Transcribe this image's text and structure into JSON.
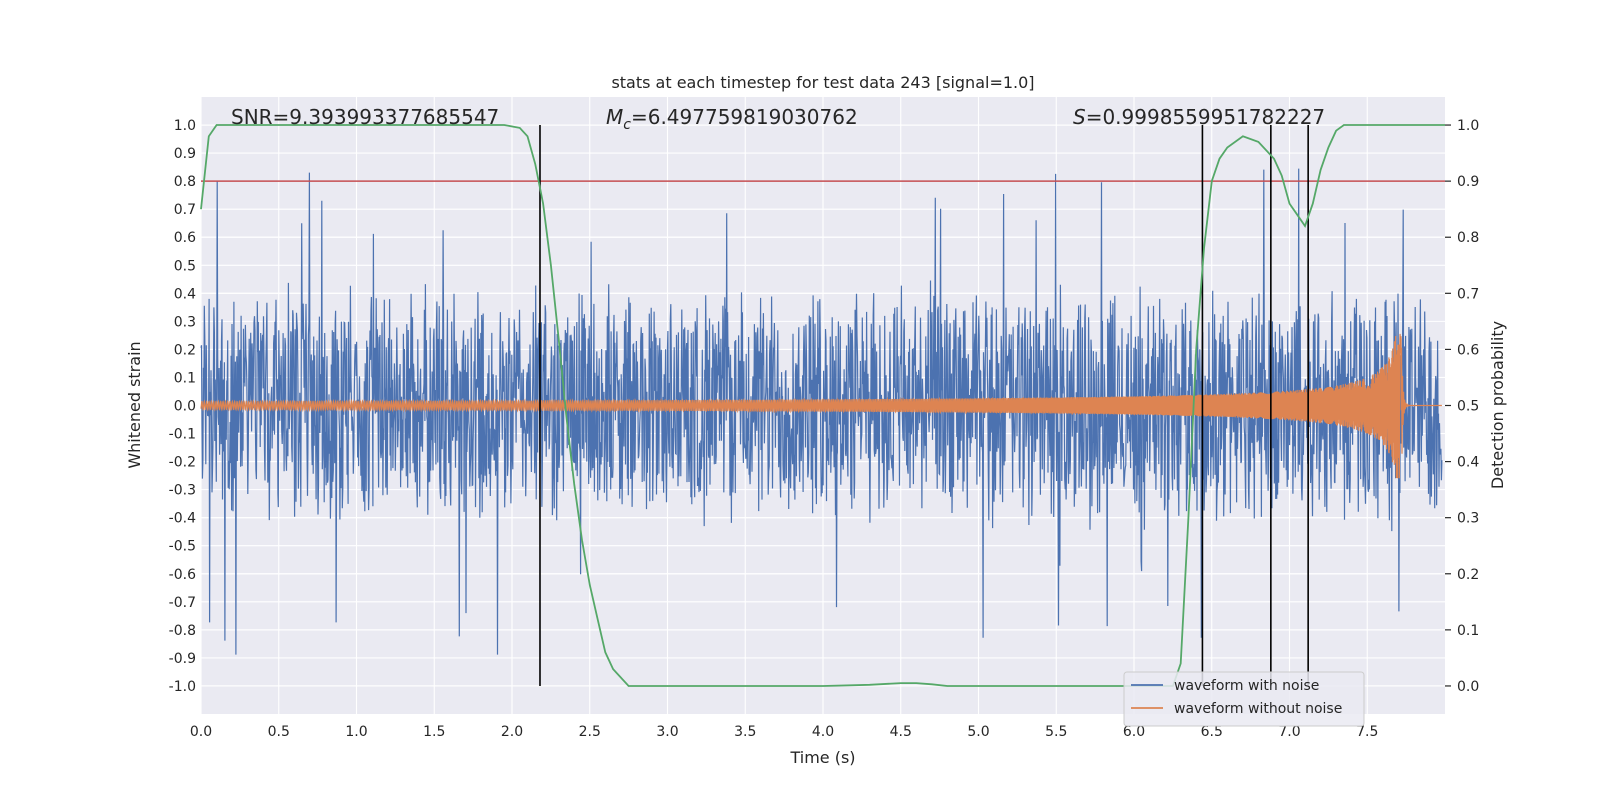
{
  "chart_data": {
    "type": "line",
    "title": "stats at each timestep for test data 243 [signal=1.0]",
    "xlabel": "Time (s)",
    "ylabel_left": "Whitened strain",
    "ylabel_right": "Detection probability",
    "xlim": [
      0.0,
      8.0
    ],
    "ylim_left": [
      -1.1,
      1.1
    ],
    "ylim_right": [
      -0.05,
      1.05
    ],
    "x_ticks": [
      "0.0",
      "0.5",
      "1.0",
      "1.5",
      "2.0",
      "2.5",
      "3.0",
      "3.5",
      "4.0",
      "4.5",
      "5.0",
      "5.5",
      "6.0",
      "6.5",
      "7.0",
      "7.5"
    ],
    "y_ticks_left": [
      "1.0",
      "0.9",
      "0.8",
      "0.7",
      "0.6",
      "0.5",
      "0.4",
      "0.3",
      "0.2",
      "0.1",
      "0.0",
      "-0.1",
      "-0.2",
      "-0.3",
      "-0.4",
      "-0.5",
      "-0.6",
      "-0.7",
      "-0.8",
      "-0.9",
      "-1.0"
    ],
    "y_ticks_right": [
      "1.0",
      "0.9",
      "0.8",
      "0.7",
      "0.6",
      "0.5",
      "0.4",
      "0.3",
      "0.2",
      "0.1",
      "0.0"
    ],
    "annotations": {
      "snr": "SNR=9.393993377685547",
      "mc_symbol": "M",
      "mc_sub": "c",
      "mc_value": "=6.497759819030762",
      "s_symbol": "S",
      "s_value": "=0.9998559951782227"
    },
    "series": [
      {
        "name": "waveform with noise",
        "color": "#4c72b0",
        "kind": "noise",
        "envelope_p95": 0.45,
        "peak": 0.89
      },
      {
        "name": "waveform without noise",
        "color": "#dd8452",
        "kind": "chirp",
        "merger_time": 7.72,
        "peak_amplitude": 0.26
      },
      {
        "name": "detection probability",
        "color": "#55a868",
        "axis": "right",
        "x": [
          0.0,
          0.05,
          0.1,
          0.2,
          1.5,
          1.95,
          2.05,
          2.1,
          2.15,
          2.2,
          2.25,
          2.3,
          2.35,
          2.4,
          2.45,
          2.5,
          2.55,
          2.6,
          2.65,
          2.75,
          3.0,
          4.0,
          4.3,
          4.5,
          4.6,
          4.7,
          4.8,
          5.0,
          6.0,
          6.25,
          6.3,
          6.35,
          6.4,
          6.45,
          6.5,
          6.55,
          6.6,
          6.7,
          6.8,
          6.9,
          6.95,
          7.0,
          7.05,
          7.1,
          7.15,
          7.2,
          7.25,
          7.3,
          7.35,
          7.4,
          8.0
        ],
        "y": [
          0.85,
          0.98,
          1.0,
          1.0,
          1.0,
          1.0,
          0.995,
          0.98,
          0.93,
          0.86,
          0.75,
          0.62,
          0.48,
          0.36,
          0.26,
          0.18,
          0.12,
          0.06,
          0.03,
          0.0,
          0.0,
          0.0,
          0.002,
          0.005,
          0.005,
          0.003,
          0.0,
          0.0,
          0.0,
          0.0,
          0.04,
          0.3,
          0.6,
          0.78,
          0.9,
          0.94,
          0.96,
          0.98,
          0.97,
          0.94,
          0.91,
          0.86,
          0.84,
          0.82,
          0.86,
          0.92,
          0.96,
          0.99,
          1.0,
          1.0,
          1.0
        ]
      }
    ],
    "hlines": [
      {
        "y_left": 0.8,
        "color": "#c44e52"
      }
    ],
    "vlines": [
      2.18,
      6.44,
      6.88,
      7.12
    ],
    "legend_location": "lower-right",
    "grid": true
  }
}
